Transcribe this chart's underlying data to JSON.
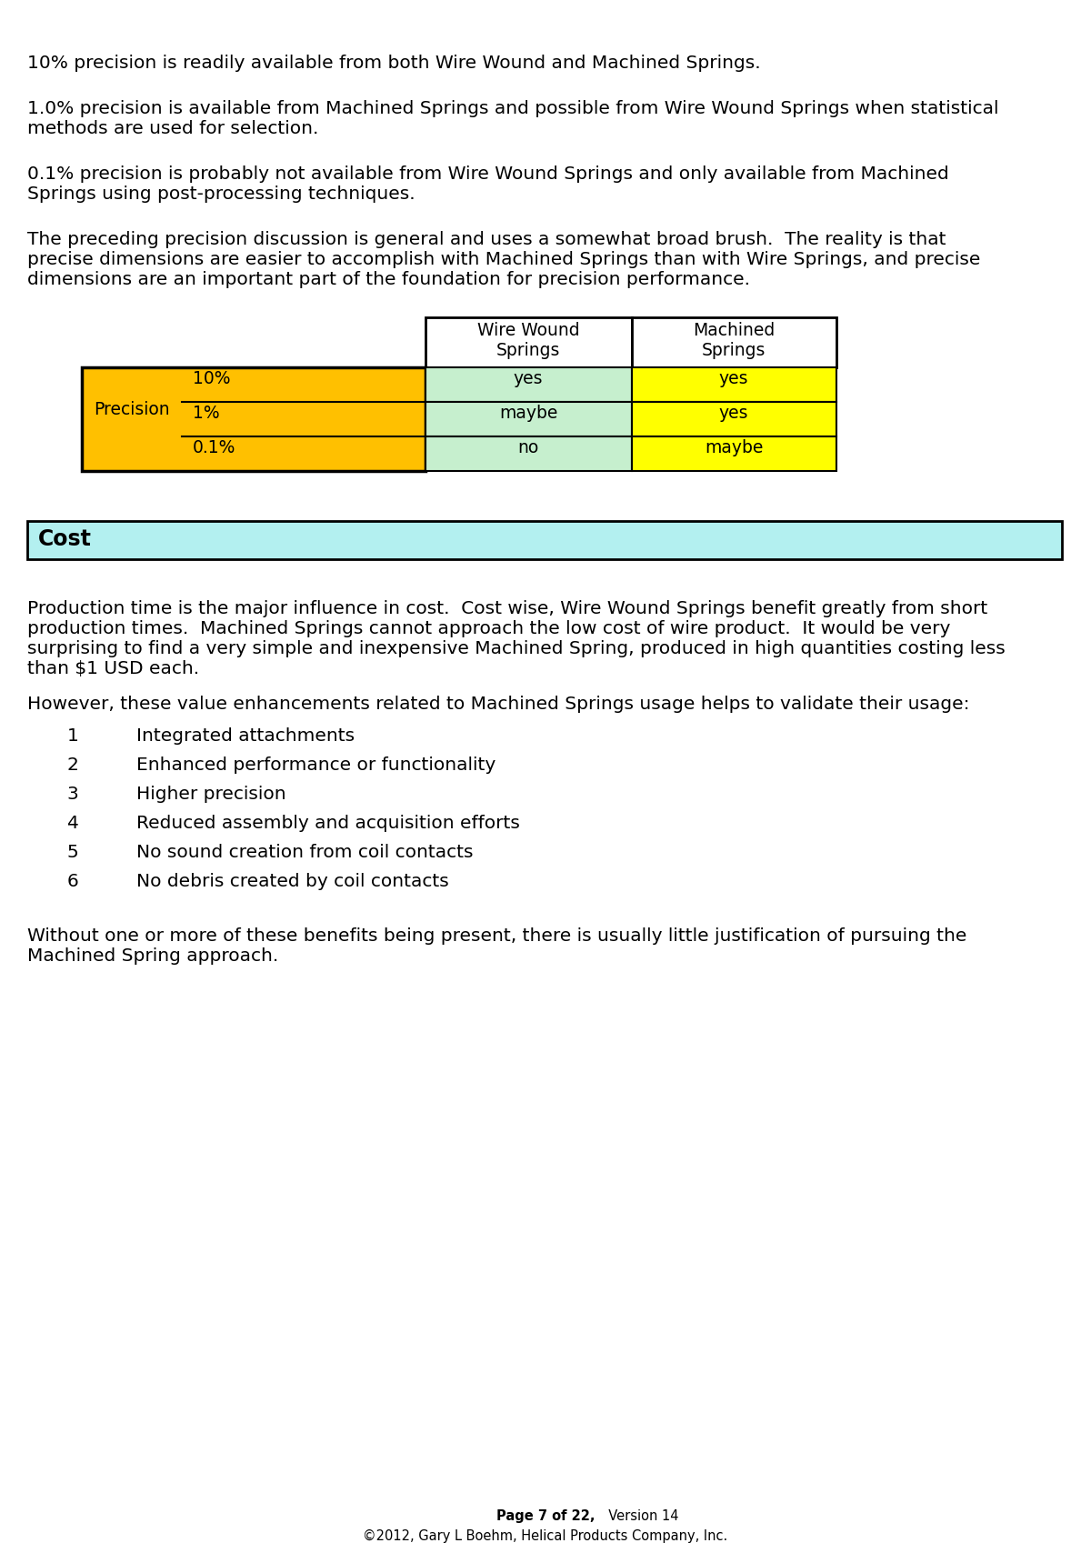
{
  "page_bg": "#ffffff",
  "text_color": "#000000",
  "font_size_body": 14.5,
  "font_size_table": 13.5,
  "font_size_header": 17,
  "font_size_footer": 10.5,
  "para1": "10% precision is readily available from both Wire Wound and Machined Springs.",
  "para2": "1.0% precision is available from Machined Springs and possible from Wire Wound Springs when statistical\nmethods are used for selection.",
  "para3": "0.1% precision is probably not available from Wire Wound Springs and only available from Machined\nSprings using post-processing techniques.",
  "para4": "The preceding precision discussion is general and uses a somewhat broad brush.  The reality is that\nprecise dimensions are easier to accomplish with Machined Springs than with Wire Springs, and precise\ndimensions are an important part of the foundation for precision performance.",
  "table_col_headers": [
    "Wire Wound\nSprings",
    "Machined\nSprings"
  ],
  "table_row_label": "Precision",
  "table_row_sublabels": [
    "10%",
    "1%",
    "0.1%"
  ],
  "table_wire_wound": [
    "yes",
    "maybe",
    "no"
  ],
  "table_machined": [
    "yes",
    "yes",
    "maybe"
  ],
  "color_orange": "#FFC000",
  "color_light_green": "#C6EFCE",
  "color_yellow": "#FFFF00",
  "color_white": "#ffffff",
  "section_cost": "Cost",
  "section_cost_bg": "#B3F0F0",
  "para5": "Production time is the major influence in cost.  Cost wise, Wire Wound Springs benefit greatly from short\nproduction times.  Machined Springs cannot approach the low cost of wire product.  It would be very\nsurprising to find a very simple and inexpensive Machined Spring, produced in high quantities costing less\nthan $1 USD each.",
  "para6_intro": "However, these value enhancements related to Machined Springs usage helps to validate their usage:",
  "list_items": [
    [
      "1",
      "Integrated attachments"
    ],
    [
      "2",
      "Enhanced performance or functionality"
    ],
    [
      "3",
      "Higher precision"
    ],
    [
      "4",
      "Reduced assembly and acquisition efforts"
    ],
    [
      "5",
      "No sound creation from coil contacts"
    ],
    [
      "6",
      "No debris created by coil contacts"
    ]
  ],
  "para7": "Without one or more of these benefits being present, there is usually little justification of pursuing the\nMachined Spring approach.",
  "footer_line1": "Page 7 of 22,",
  "footer_version": "  Version 14",
  "footer_line2": "©2012, Gary L Boehm, Helical Products Company, Inc."
}
